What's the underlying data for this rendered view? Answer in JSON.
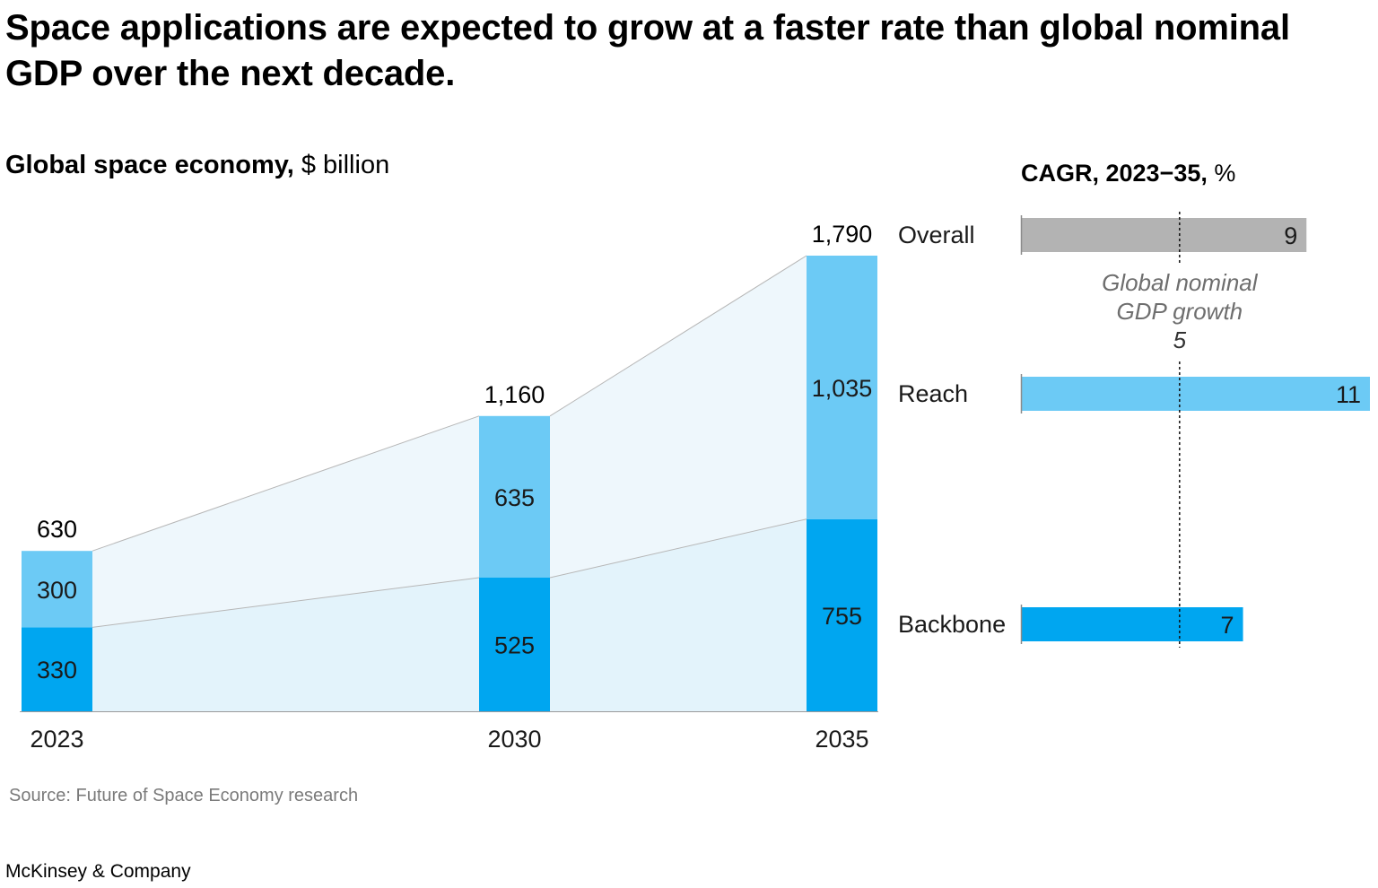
{
  "headline": "Space applications are expected to grow at a faster rate than global nominal GDP over the next decade.",
  "subtitle": {
    "bold": "Global space economy,",
    "unit": " $ billion"
  },
  "cagr_title": {
    "bold": "CAGR, 2023−35,",
    "unit": " %"
  },
  "source": "Source: Future of Space Economy research",
  "brand": "McKinsey & Company",
  "colors": {
    "reach": "#6ccaf5",
    "backbone": "#00a6f0",
    "overall": "#b3b3b3",
    "reach_band": "#eef7fc",
    "backbone_band": "#e3f3fb",
    "connector": "#b7b7b7"
  },
  "chart_data": [
    {
      "type": "bar",
      "stacked": true,
      "title": "Global space economy, $ billion",
      "categories": [
        "2023",
        "2030",
        "2035"
      ],
      "series": [
        {
          "name": "Backbone",
          "values": [
            330,
            525,
            755
          ],
          "labels": [
            "330",
            "525",
            "755"
          ]
        },
        {
          "name": "Reach",
          "values": [
            300,
            635,
            1035
          ],
          "labels": [
            "300",
            "635",
            "1,035"
          ]
        }
      ],
      "totals": [
        630,
        1160,
        1790
      ],
      "total_labels": [
        "630",
        "1,160",
        "1,790"
      ],
      "ylim": [
        0,
        1790
      ]
    },
    {
      "type": "bar",
      "orientation": "horizontal",
      "title": "CAGR, 2023−35, %",
      "categories": [
        "Overall",
        "Reach",
        "Backbone"
      ],
      "values": [
        9,
        11,
        7
      ],
      "labels": [
        "9",
        "11",
        "7"
      ],
      "reference_line": {
        "label_lines": [
          "Global nominal",
          "GDP growth"
        ],
        "value": 5,
        "value_label": "5"
      },
      "xlim": [
        0,
        11
      ]
    }
  ]
}
